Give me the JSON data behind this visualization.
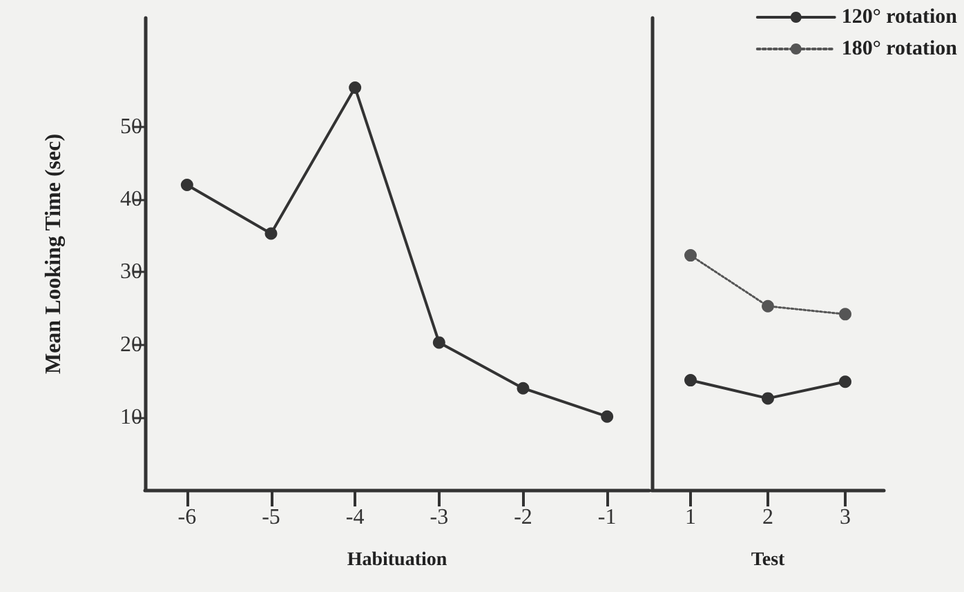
{
  "chart_data": [
    {
      "type": "line",
      "xlabel": "Habituation",
      "ylabel": "Mean Looking Time (sec)",
      "categories": [
        "-6",
        "-5",
        "-4",
        "-3",
        "-2",
        "-1"
      ],
      "ylim": [
        0,
        65
      ],
      "yticks": [
        10,
        20,
        30,
        40,
        50
      ],
      "grid": false,
      "marker": "circle",
      "line_style": "solid",
      "series": [
        {
          "color": "#333333",
          "values": [
            42,
            35.3,
            55.4,
            20.3,
            14,
            10.1
          ]
        }
      ]
    },
    {
      "type": "line",
      "xlabel": "Test",
      "categories": [
        "1",
        "2",
        "3"
      ],
      "ylim": [
        0,
        65
      ],
      "yticks": [
        10,
        20,
        30,
        40,
        50
      ],
      "grid": false,
      "tick_labels": "x",
      "legend": "top right",
      "marker": "circle",
      "series": [
        {
          "name": "120° rotation",
          "color": "#333333",
          "line_style": "solid",
          "values": [
            15.1,
            12.6,
            14.9
          ]
        },
        {
          "name": "180° rotation",
          "color": "#555555",
          "line_style": "dotted",
          "values": [
            32.3,
            25.3,
            24.2
          ]
        }
      ]
    }
  ]
}
